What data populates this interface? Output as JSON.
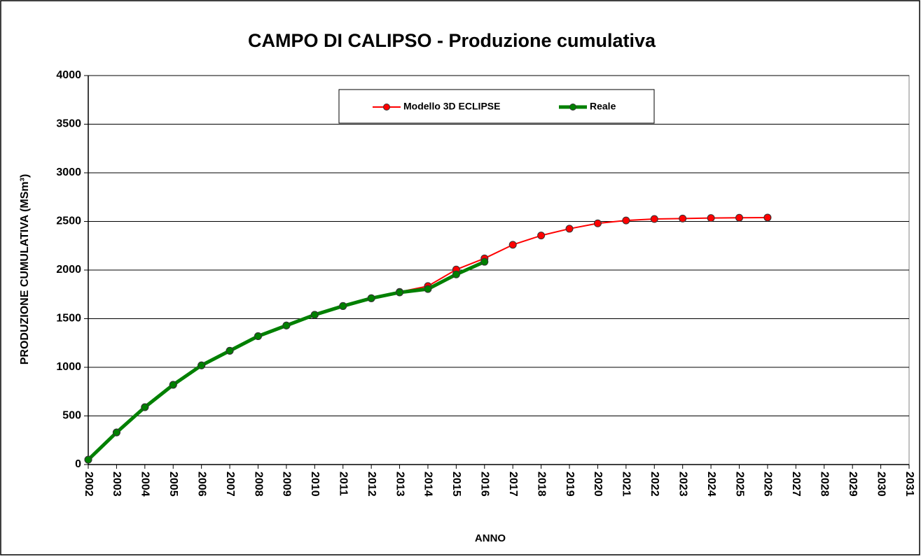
{
  "chart_data": {
    "type": "line",
    "title": "CAMPO DI CALIPSO - Produzione cumulativa",
    "x_label": "ANNO",
    "y_label": "PRODUZIONE CUMULATIVA (MSm³)",
    "x": [
      2002,
      2003,
      2004,
      2005,
      2006,
      2007,
      2008,
      2009,
      2010,
      2011,
      2012,
      2013,
      2014,
      2015,
      2016,
      2017,
      2018,
      2019,
      2020,
      2021,
      2022,
      2023,
      2024,
      2025,
      2026
    ],
    "series": [
      {
        "name": "Modello 3D ECLIPSE",
        "color": "#ff0000",
        "values": [
          50,
          330,
          590,
          820,
          1020,
          1170,
          1320,
          1430,
          1540,
          1630,
          1710,
          1775,
          1835,
          2005,
          2120,
          2260,
          2355,
          2425,
          2480,
          2510,
          2525,
          2530,
          2535,
          2538,
          2540
        ]
      },
      {
        "name": "Reale",
        "color": "#008000",
        "values": [
          50,
          330,
          590,
          820,
          1020,
          1170,
          1320,
          1430,
          1540,
          1630,
          1710,
          1770,
          1805,
          1955,
          2085,
          null,
          null,
          null,
          null,
          null,
          null,
          null,
          null,
          null,
          null
        ]
      }
    ],
    "xlim": [
      2002,
      2031
    ],
    "xticks": [
      2002,
      2003,
      2004,
      2005,
      2006,
      2007,
      2008,
      2009,
      2010,
      2011,
      2012,
      2013,
      2014,
      2015,
      2016,
      2017,
      2018,
      2019,
      2020,
      2021,
      2022,
      2023,
      2024,
      2025,
      2026,
      2027,
      2028,
      2029,
      2030,
      2031
    ],
    "ylim": [
      0,
      4000
    ],
    "yticks": [
      0,
      500,
      1000,
      1500,
      2000,
      2500,
      3000,
      3500,
      4000
    ],
    "grid": true,
    "legend": "top"
  }
}
